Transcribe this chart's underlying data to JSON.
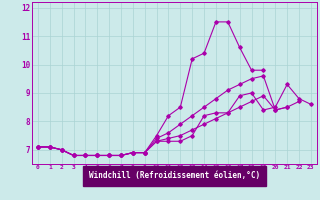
{
  "xlabel": "Windchill (Refroidissement éolien,°C)",
  "bg_color": "#cceaea",
  "grid_color": "#aad4d4",
  "line_color": "#aa00aa",
  "xlabel_bg": "#660066",
  "xlabel_fg": "#ffffff",
  "xlim": [
    -0.5,
    23.5
  ],
  "ylim": [
    6.5,
    12.2
  ],
  "xticks": [
    0,
    1,
    2,
    3,
    4,
    5,
    6,
    7,
    8,
    9,
    10,
    11,
    12,
    13,
    14,
    15,
    16,
    17,
    18,
    19,
    20,
    21,
    22,
    23
  ],
  "yticks": [
    7,
    8,
    9,
    10,
    11,
    12
  ],
  "series": [
    [
      7.1,
      7.1,
      7.0,
      6.8,
      6.8,
      6.8,
      6.8,
      6.8,
      6.9,
      6.9,
      7.3,
      7.3,
      7.3,
      7.5,
      8.2,
      8.3,
      8.3,
      8.9,
      9.0,
      8.4,
      8.5,
      9.3,
      8.8,
      8.6
    ],
    [
      7.1,
      7.1,
      7.0,
      6.8,
      6.8,
      6.8,
      6.8,
      6.8,
      6.9,
      6.9,
      7.5,
      8.2,
      8.5,
      10.2,
      10.4,
      11.5,
      11.5,
      10.6,
      9.8,
      9.8,
      null,
      null,
      null,
      null
    ],
    [
      7.1,
      7.1,
      7.0,
      6.8,
      6.8,
      6.8,
      6.8,
      6.8,
      6.9,
      6.9,
      7.4,
      7.6,
      7.9,
      8.2,
      8.5,
      8.8,
      9.1,
      9.3,
      9.5,
      9.6,
      8.4,
      8.5,
      null,
      null
    ],
    [
      7.1,
      7.1,
      7.0,
      6.8,
      6.8,
      6.8,
      6.8,
      6.8,
      6.9,
      6.9,
      7.3,
      7.4,
      7.5,
      7.7,
      7.9,
      8.1,
      8.3,
      8.5,
      8.7,
      8.9,
      8.4,
      8.5,
      8.7,
      null
    ]
  ]
}
